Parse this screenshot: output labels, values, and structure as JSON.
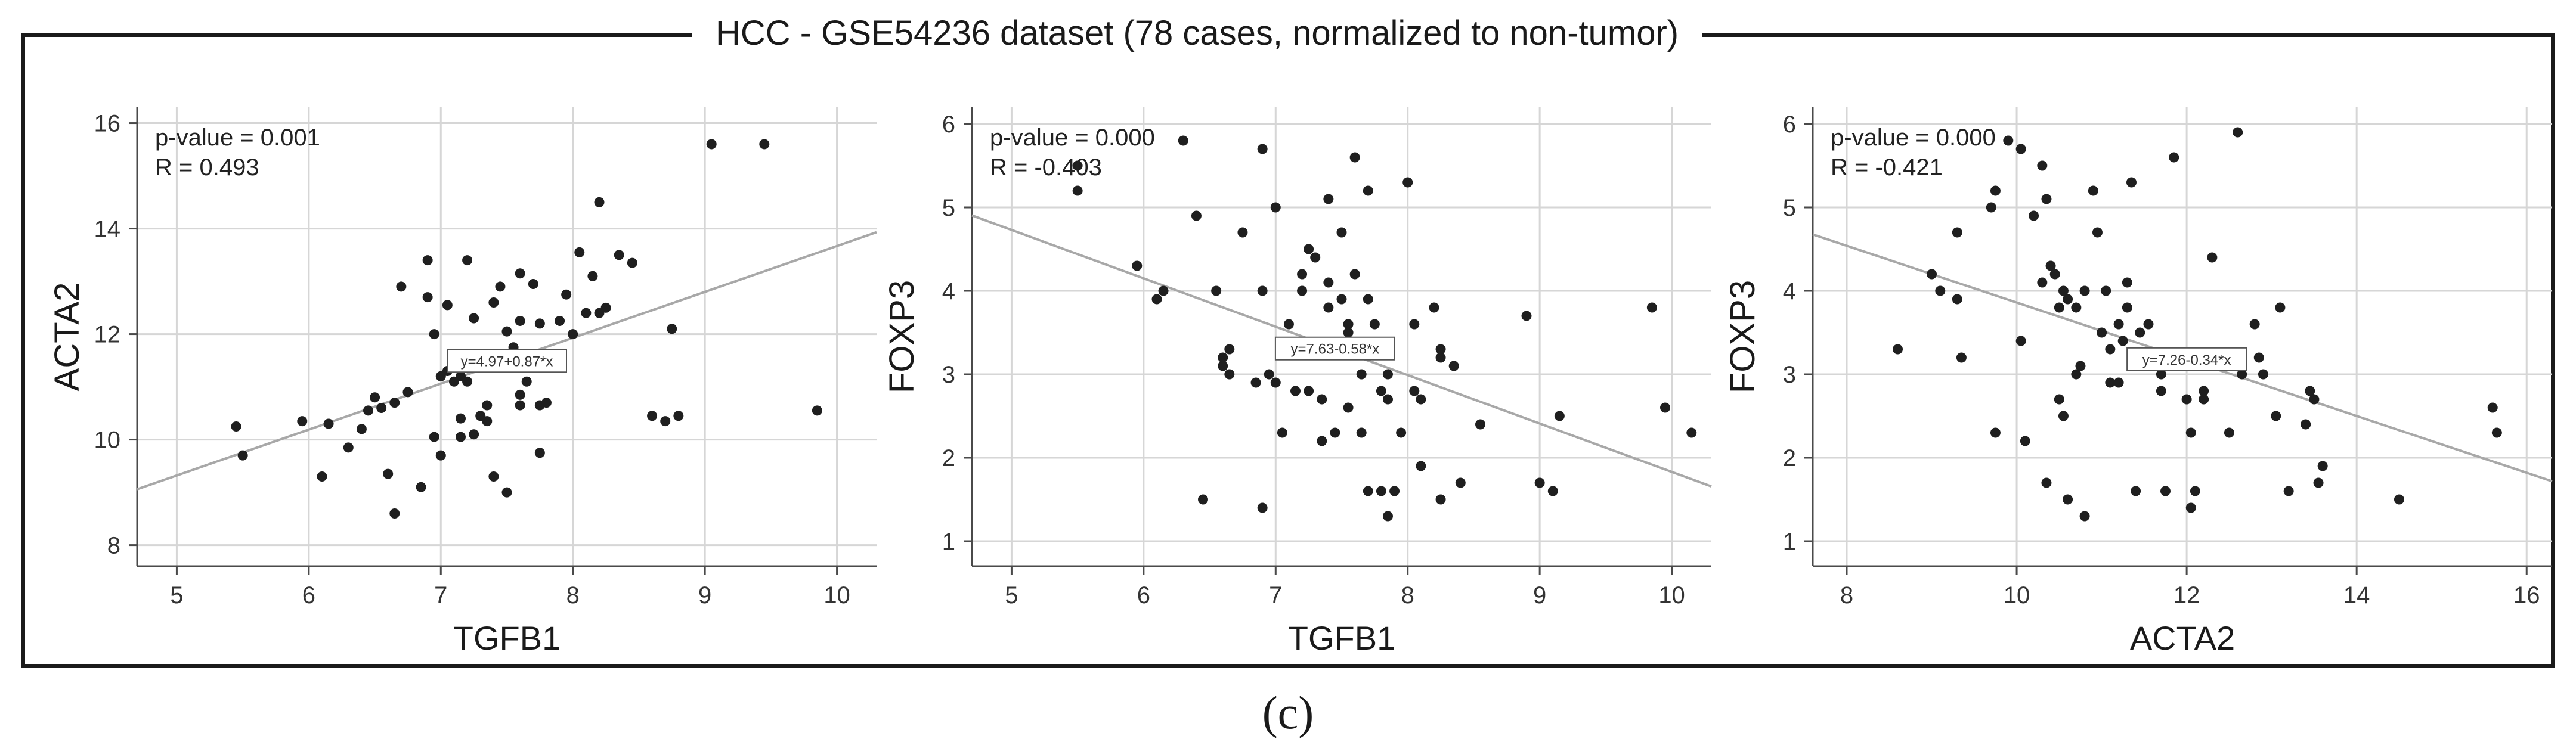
{
  "figure": {
    "title": "HCC - GSE54236 dataset (78 cases, normalized to non-tumor)",
    "panel_label": "(c)"
  },
  "colors": {
    "points": "#1f1f1f",
    "fit_line": "#a8a8a8",
    "grid": "#d6d6d6",
    "frame": "#1a1a1a"
  },
  "chart_data": [
    {
      "type": "scatter",
      "title": "",
      "xlabel": "TGFB1",
      "ylabel": "ACTA2",
      "xlim": [
        4.7,
        10.3
      ],
      "ylim": [
        7.6,
        16.3
      ],
      "xticks": [
        5,
        6,
        7,
        8,
        9,
        10
      ],
      "yticks": [
        8,
        10,
        12,
        14,
        16
      ],
      "stats": [
        "p-value = 0.001",
        "R = 0.493"
      ],
      "fit_label": "y=4.97+0.87*x",
      "fit": {
        "intercept": 4.97,
        "slope": 0.87,
        "label_x": 7.5
      },
      "points": [
        [
          5.45,
          10.25
        ],
        [
          5.5,
          9.7
        ],
        [
          5.95,
          10.35
        ],
        [
          6.1,
          9.3
        ],
        [
          6.15,
          10.3
        ],
        [
          6.3,
          9.85
        ],
        [
          6.4,
          10.2
        ],
        [
          6.45,
          10.55
        ],
        [
          6.5,
          10.8
        ],
        [
          6.55,
          10.6
        ],
        [
          6.6,
          9.35
        ],
        [
          6.65,
          8.6
        ],
        [
          6.65,
          10.7
        ],
        [
          6.7,
          12.9
        ],
        [
          6.75,
          10.9
        ],
        [
          6.85,
          9.1
        ],
        [
          6.9,
          12.7
        ],
        [
          6.9,
          13.4
        ],
        [
          6.95,
          12.0
        ],
        [
          6.95,
          10.05
        ],
        [
          7.0,
          11.2
        ],
        [
          7.0,
          9.7
        ],
        [
          7.05,
          12.55
        ],
        [
          7.05,
          11.3
        ],
        [
          7.1,
          11.1
        ],
        [
          7.15,
          11.2
        ],
        [
          7.15,
          10.4
        ],
        [
          7.15,
          10.05
        ],
        [
          7.2,
          13.4
        ],
        [
          7.2,
          11.45
        ],
        [
          7.2,
          11.1
        ],
        [
          7.25,
          12.3
        ],
        [
          7.25,
          10.1
        ],
        [
          7.3,
          10.45
        ],
        [
          7.35,
          10.65
        ],
        [
          7.35,
          10.35
        ],
        [
          7.4,
          9.3
        ],
        [
          7.4,
          12.6
        ],
        [
          7.45,
          12.9
        ],
        [
          7.45,
          11.4
        ],
        [
          7.5,
          12.05
        ],
        [
          7.5,
          9.0
        ],
        [
          7.55,
          11.75
        ],
        [
          7.55,
          11.55
        ],
        [
          7.6,
          13.15
        ],
        [
          7.6,
          12.25
        ],
        [
          7.6,
          10.85
        ],
        [
          7.6,
          10.65
        ],
        [
          7.65,
          11.1
        ],
        [
          7.7,
          12.95
        ],
        [
          7.75,
          12.2
        ],
        [
          7.75,
          10.65
        ],
        [
          7.75,
          9.75
        ],
        [
          7.8,
          10.7
        ],
        [
          7.9,
          12.25
        ],
        [
          7.95,
          12.75
        ],
        [
          8.0,
          12.0
        ],
        [
          8.05,
          13.55
        ],
        [
          8.1,
          12.4
        ],
        [
          8.15,
          13.1
        ],
        [
          8.2,
          14.5
        ],
        [
          8.2,
          12.4
        ],
        [
          8.25,
          12.5
        ],
        [
          8.35,
          13.5
        ],
        [
          8.45,
          13.35
        ],
        [
          8.6,
          10.45
        ],
        [
          8.7,
          10.35
        ],
        [
          8.75,
          12.1
        ],
        [
          8.8,
          10.45
        ],
        [
          9.05,
          15.6
        ],
        [
          9.45,
          15.6
        ],
        [
          9.85,
          10.55
        ]
      ]
    },
    {
      "type": "scatter",
      "title": "",
      "xlabel": "TGFB1",
      "ylabel": "FOXP3",
      "xlim": [
        4.7,
        10.3
      ],
      "ylim": [
        0.7,
        6.2
      ],
      "xticks": [
        5,
        6,
        7,
        8,
        9,
        10
      ],
      "yticks": [
        1,
        2,
        3,
        4,
        5,
        6
      ],
      "stats": [
        "p-value = 0.000",
        "R = -0.403"
      ],
      "fit_label": "y=7.63-0.58*x",
      "fit": {
        "intercept": 7.63,
        "slope": -0.58,
        "label_x": 7.45
      },
      "points": [
        [
          5.5,
          5.5
        ],
        [
          5.5,
          5.2
        ],
        [
          5.95,
          4.3
        ],
        [
          6.1,
          3.9
        ],
        [
          6.15,
          4.0
        ],
        [
          6.3,
          5.8
        ],
        [
          6.4,
          4.9
        ],
        [
          6.45,
          1.5
        ],
        [
          6.55,
          4.0
        ],
        [
          6.6,
          3.2
        ],
        [
          6.6,
          3.1
        ],
        [
          6.65,
          3.3
        ],
        [
          6.65,
          3.0
        ],
        [
          6.75,
          4.7
        ],
        [
          6.85,
          2.9
        ],
        [
          6.9,
          4.0
        ],
        [
          6.9,
          5.7
        ],
        [
          6.9,
          1.4
        ],
        [
          6.95,
          3.0
        ],
        [
          7.0,
          5.0
        ],
        [
          7.0,
          2.9
        ],
        [
          7.05,
          2.3
        ],
        [
          7.1,
          3.6
        ],
        [
          7.1,
          3.3
        ],
        [
          7.15,
          2.8
        ],
        [
          7.2,
          4.2
        ],
        [
          7.2,
          4.0
        ],
        [
          7.25,
          4.5
        ],
        [
          7.25,
          2.8
        ],
        [
          7.3,
          4.4
        ],
        [
          7.3,
          3.3
        ],
        [
          7.35,
          2.7
        ],
        [
          7.35,
          2.2
        ],
        [
          7.4,
          5.1
        ],
        [
          7.4,
          4.1
        ],
        [
          7.4,
          3.8
        ],
        [
          7.45,
          3.3
        ],
        [
          7.45,
          2.3
        ],
        [
          7.5,
          4.7
        ],
        [
          7.5,
          3.9
        ],
        [
          7.55,
          3.6
        ],
        [
          7.55,
          3.5
        ],
        [
          7.55,
          2.6
        ],
        [
          7.6,
          5.6
        ],
        [
          7.6,
          4.2
        ],
        [
          7.65,
          3.0
        ],
        [
          7.65,
          2.3
        ],
        [
          7.7,
          5.2
        ],
        [
          7.7,
          3.9
        ],
        [
          7.7,
          1.6
        ],
        [
          7.75,
          3.6
        ],
        [
          7.8,
          2.8
        ],
        [
          7.8,
          1.6
        ],
        [
          7.85,
          3.0
        ],
        [
          7.85,
          2.7
        ],
        [
          7.85,
          1.3
        ],
        [
          7.9,
          1.6
        ],
        [
          7.95,
          2.3
        ],
        [
          8.0,
          5.3
        ],
        [
          8.05,
          3.6
        ],
        [
          8.05,
          2.8
        ],
        [
          8.1,
          2.7
        ],
        [
          8.1,
          1.9
        ],
        [
          8.2,
          3.8
        ],
        [
          8.25,
          1.5
        ],
        [
          8.25,
          3.2
        ],
        [
          8.25,
          3.3
        ],
        [
          8.35,
          3.1
        ],
        [
          8.4,
          1.7
        ],
        [
          8.55,
          2.4
        ],
        [
          8.9,
          3.7
        ],
        [
          9.0,
          1.7
        ],
        [
          9.1,
          1.6
        ],
        [
          9.15,
          2.5
        ],
        [
          9.85,
          3.8
        ],
        [
          9.95,
          2.6
        ],
        [
          10.15,
          2.3
        ]
      ]
    },
    {
      "type": "scatter",
      "title": "",
      "xlabel": "ACTA2",
      "ylabel": "FOXP3",
      "xlim": [
        7.6,
        16.3
      ],
      "ylim": [
        0.7,
        6.2
      ],
      "xticks": [
        8,
        10,
        12,
        14,
        16
      ],
      "yticks": [
        1,
        2,
        3,
        4,
        5,
        6
      ],
      "stats": [
        "p-value = 0.000",
        "R = -0.421"
      ],
      "fit_label": "y=7.26-0.34*x",
      "fit": {
        "intercept": 7.26,
        "slope": -0.34,
        "label_x": 12.0
      },
      "points": [
        [
          8.6,
          3.3
        ],
        [
          9.0,
          4.2
        ],
        [
          9.1,
          4.0
        ],
        [
          9.3,
          3.9
        ],
        [
          9.3,
          4.7
        ],
        [
          9.35,
          3.2
        ],
        [
          9.7,
          5.0
        ],
        [
          9.75,
          5.2
        ],
        [
          9.75,
          2.3
        ],
        [
          9.9,
          5.8
        ],
        [
          10.05,
          5.7
        ],
        [
          10.05,
          3.4
        ],
        [
          10.1,
          2.2
        ],
        [
          10.2,
          4.9
        ],
        [
          10.3,
          5.5
        ],
        [
          10.3,
          4.1
        ],
        [
          10.35,
          5.1
        ],
        [
          10.35,
          1.7
        ],
        [
          10.4,
          4.3
        ],
        [
          10.45,
          4.2
        ],
        [
          10.5,
          3.8
        ],
        [
          10.5,
          2.7
        ],
        [
          10.55,
          4.0
        ],
        [
          10.55,
          2.5
        ],
        [
          10.6,
          3.9
        ],
        [
          10.6,
          1.5
        ],
        [
          10.7,
          3.8
        ],
        [
          10.7,
          3.0
        ],
        [
          10.75,
          3.1
        ],
        [
          10.8,
          4.0
        ],
        [
          10.8,
          1.3
        ],
        [
          10.9,
          5.2
        ],
        [
          10.95,
          4.7
        ],
        [
          11.0,
          3.5
        ],
        [
          11.05,
          4.0
        ],
        [
          11.1,
          3.3
        ],
        [
          11.1,
          2.9
        ],
        [
          11.2,
          3.6
        ],
        [
          11.2,
          2.9
        ],
        [
          11.25,
          3.4
        ],
        [
          11.3,
          4.1
        ],
        [
          11.3,
          3.8
        ],
        [
          11.35,
          5.3
        ],
        [
          11.4,
          1.6
        ],
        [
          11.45,
          3.5
        ],
        [
          11.55,
          3.6
        ],
        [
          11.6,
          3.2
        ],
        [
          11.7,
          3.0
        ],
        [
          11.7,
          2.8
        ],
        [
          11.75,
          1.6
        ],
        [
          11.85,
          5.6
        ],
        [
          11.95,
          3.1
        ],
        [
          12.0,
          2.7
        ],
        [
          12.05,
          2.3
        ],
        [
          12.05,
          1.4
        ],
        [
          12.1,
          1.6
        ],
        [
          12.2,
          2.8
        ],
        [
          12.2,
          2.7
        ],
        [
          12.3,
          4.4
        ],
        [
          12.5,
          2.3
        ],
        [
          12.6,
          5.9
        ],
        [
          12.65,
          3.0
        ],
        [
          12.8,
          3.6
        ],
        [
          12.85,
          3.2
        ],
        [
          12.9,
          3.0
        ],
        [
          13.05,
          2.5
        ],
        [
          13.1,
          3.8
        ],
        [
          13.2,
          1.6
        ],
        [
          13.4,
          2.4
        ],
        [
          13.45,
          2.8
        ],
        [
          13.5,
          2.7
        ],
        [
          13.55,
          1.7
        ],
        [
          13.6,
          1.9
        ],
        [
          14.5,
          1.5
        ],
        [
          15.6,
          2.6
        ],
        [
          15.65,
          2.3
        ]
      ]
    }
  ]
}
